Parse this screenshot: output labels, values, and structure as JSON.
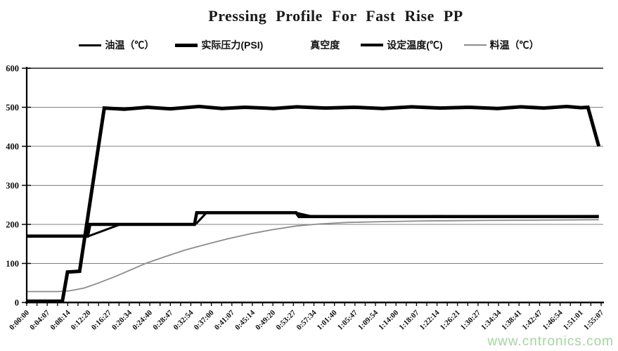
{
  "page": {
    "background": "#ffffff",
    "watermark": {
      "text": "www.cntronics.com",
      "color": "#a5d4a0"
    }
  },
  "colors": {
    "axis": "#000000",
    "gridline": "#7f7f7f",
    "plot_top_border": "#1a1a1a"
  },
  "chart_data": {
    "type": "line",
    "title": "Pressing Profile For Fast Rise PP",
    "xlabel": "",
    "ylabel": "",
    "ylim": [
      0,
      600
    ],
    "y_ticks": [
      0,
      100,
      200,
      300,
      400,
      500,
      600
    ],
    "grid": "horizontal",
    "legend_position": "top",
    "x_unit": "elapsed time h:mm:ss; series x values are fractions 0-1 across the time axis (0 = 0:00:00, 1 = 1:55:07)",
    "x_tick_labels": [
      "0:00:00",
      "0:04:07",
      "0:08:14",
      "0:12:20",
      "0:16:27",
      "0:20:34",
      "0:24:40",
      "0:28:47",
      "0:32:54",
      "0:37:00",
      "0:41:07",
      "0:45:14",
      "0:49:20",
      "0:53:27",
      "0:57:34",
      "1:01:40",
      "1:05:47",
      "1:09:54",
      "1:14:00",
      "1:18:07",
      "1:22:14",
      "1:26:21",
      "1:30:27",
      "1:34:34",
      "1:38:41",
      "1:42:47",
      "1:46:54",
      "1:51:01",
      "1:55:07"
    ],
    "minor_ticks_per_interval": 1,
    "series": [
      {
        "id": "vacuum",
        "name": "真空度",
        "color": "#ffffff",
        "width": 4,
        "points": [
          [
            0,
            0
          ],
          [
            0.996,
            0
          ]
        ]
      },
      {
        "id": "material-temp",
        "name": "料温（℃）",
        "color": "#8c8c8c",
        "width": 1.8,
        "points": [
          [
            0,
            28
          ],
          [
            0.055,
            28
          ],
          [
            0.075,
            30
          ],
          [
            0.1,
            37
          ],
          [
            0.125,
            50
          ],
          [
            0.155,
            67
          ],
          [
            0.185,
            86
          ],
          [
            0.207,
            100
          ],
          [
            0.24,
            117
          ],
          [
            0.275,
            134
          ],
          [
            0.31,
            148
          ],
          [
            0.35,
            163
          ],
          [
            0.39,
            176
          ],
          [
            0.43,
            187
          ],
          [
            0.47,
            196
          ],
          [
            0.51,
            201
          ],
          [
            0.56,
            205
          ],
          [
            0.62,
            207
          ],
          [
            0.7,
            209
          ],
          [
            0.8,
            210
          ],
          [
            0.9,
            211
          ],
          [
            0.996,
            212
          ]
        ]
      },
      {
        "id": "oil-temp",
        "name": "油温（℃）",
        "color": "#000000",
        "width": 3,
        "points": [
          [
            0,
            169
          ],
          [
            0.106,
            169
          ],
          [
            0.163,
            200
          ],
          [
            0.29,
            201
          ],
          [
            0.296,
            203
          ],
          [
            0.313,
            230
          ],
          [
            0.468,
            230
          ],
          [
            0.495,
            221
          ],
          [
            0.6,
            220
          ],
          [
            0.72,
            221
          ],
          [
            0.85,
            220
          ],
          [
            0.996,
            221
          ]
        ]
      },
      {
        "id": "set-temp",
        "name": "设定温度(℃)",
        "color": "#000000",
        "width": 4.5,
        "points": [
          [
            0,
            170
          ],
          [
            0.106,
            170
          ],
          [
            0.11,
            200
          ],
          [
            0.292,
            200
          ],
          [
            0.296,
            230
          ],
          [
            0.469,
            230
          ],
          [
            0.474,
            220
          ],
          [
            0.996,
            220
          ]
        ]
      },
      {
        "id": "actual-pressure",
        "name": "实际压力(PSI)",
        "color": "#000000",
        "width": 5,
        "points": [
          [
            0,
            3
          ],
          [
            0.062,
            3
          ],
          [
            0.071,
            78
          ],
          [
            0.092,
            80
          ],
          [
            0.135,
            498
          ],
          [
            0.17,
            495
          ],
          [
            0.21,
            500
          ],
          [
            0.25,
            496
          ],
          [
            0.3,
            502
          ],
          [
            0.34,
            497
          ],
          [
            0.38,
            500
          ],
          [
            0.43,
            497
          ],
          [
            0.47,
            501
          ],
          [
            0.52,
            498
          ],
          [
            0.57,
            500
          ],
          [
            0.62,
            497
          ],
          [
            0.67,
            501
          ],
          [
            0.72,
            498
          ],
          [
            0.77,
            500
          ],
          [
            0.82,
            497
          ],
          [
            0.86,
            501
          ],
          [
            0.9,
            498
          ],
          [
            0.94,
            502
          ],
          [
            0.965,
            499
          ],
          [
            0.977,
            500
          ],
          [
            0.996,
            400
          ]
        ]
      }
    ]
  }
}
